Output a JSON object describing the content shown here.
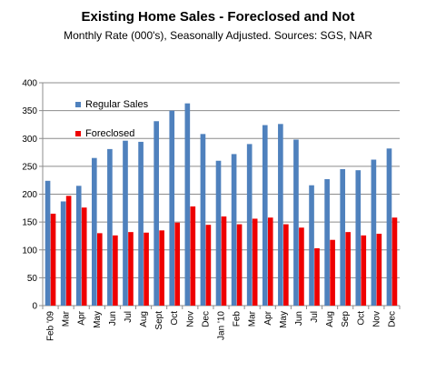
{
  "chart_data": {
    "type": "bar",
    "title": "Existing Home Sales - Foreclosed and Not",
    "subtitle": "Monthly Rate (000's), Seasonally Adjusted.  Sources: SGS, NAR",
    "xlabel": "",
    "ylabel": "",
    "ylim": [
      0,
      400
    ],
    "yticks": [
      0,
      50,
      100,
      150,
      200,
      250,
      300,
      350,
      400
    ],
    "grid": true,
    "legend_position": "top-left",
    "categories": [
      "Feb '09",
      "Mar",
      "Apr",
      "May",
      "Jun",
      "Jul",
      "Aug",
      "Sept",
      "Oct",
      "Nov",
      "Dec",
      "Jan '10",
      "Feb",
      "Mar",
      "Apr",
      "May",
      "Jun",
      "Jul",
      "Aug",
      "Sep",
      "Oct",
      "Nov",
      "Dec"
    ],
    "series": [
      {
        "name": "Regular Sales",
        "color": "#4f81bd",
        "values": [
          224,
          187,
          215,
          265,
          281,
          296,
          294,
          331,
          350,
          363,
          308,
          260,
          272,
          290,
          324,
          326,
          298,
          216,
          227,
          245,
          243,
          262,
          282
        ]
      },
      {
        "name": "Foreclosed",
        "color": "#ee0000",
        "values": [
          165,
          197,
          176,
          130,
          126,
          132,
          131,
          135,
          149,
          178,
          145,
          160,
          146,
          156,
          158,
          146,
          140,
          103,
          118,
          132,
          126,
          129,
          158
        ]
      }
    ]
  }
}
